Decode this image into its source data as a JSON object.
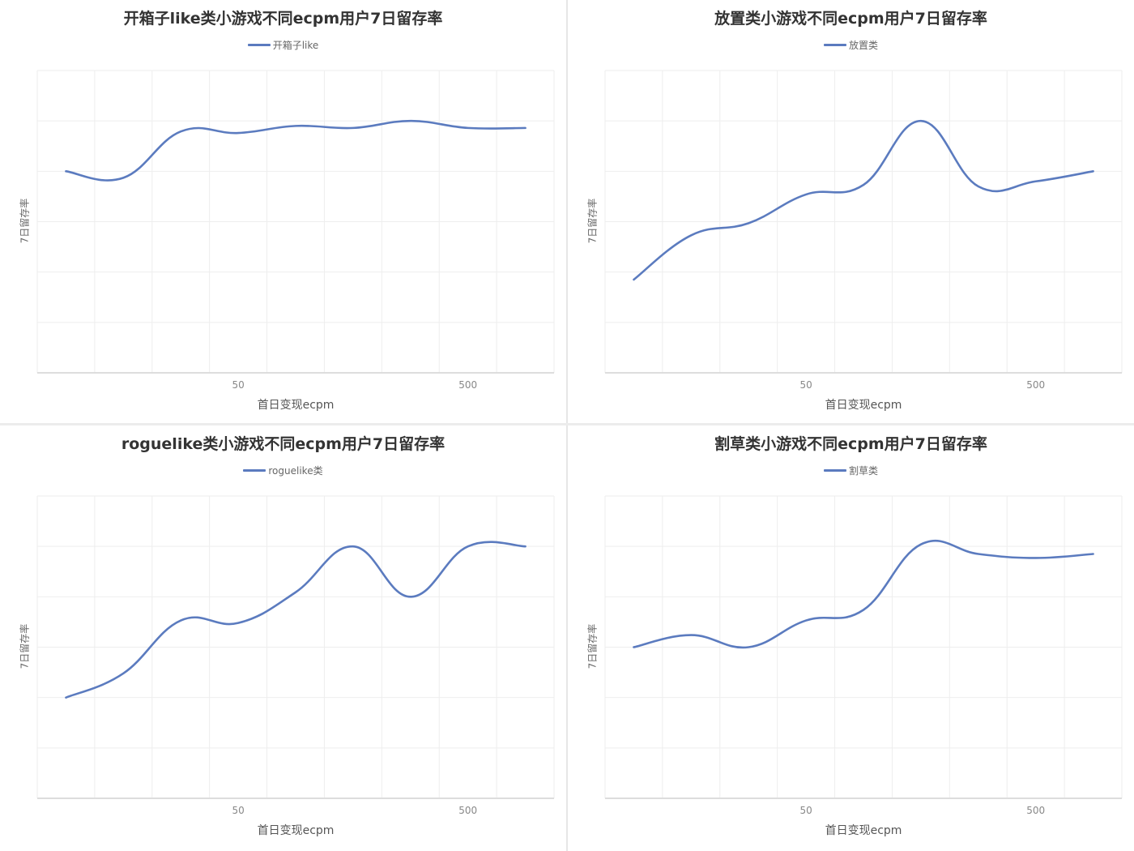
{
  "colors": {
    "line": "#5b7bbf",
    "grid": "#eeeeee",
    "axis": "#dddddd"
  },
  "panels": [
    {
      "title": "开箱子like类小游戏不同ecpm用户7日留存率",
      "legend": "开箱子like",
      "ylabel": "7日留存率",
      "xlabel": "首日变现ecpm",
      "xticks": [
        {
          "label": "50",
          "index": 3
        },
        {
          "label": "500",
          "index": 7
        }
      ]
    },
    {
      "title": "放置类小游戏不同ecpm用户7日留存率",
      "legend": "放置类",
      "ylabel": "7日留存率",
      "xlabel": "首日变现ecpm",
      "xticks": [
        {
          "label": "50",
          "index": 3
        },
        {
          "label": "500",
          "index": 7
        }
      ]
    },
    {
      "title": "roguelike类小游戏不同ecpm用户7日留存率",
      "legend": "roguelike类",
      "ylabel": "7日留存率",
      "xlabel": "首日变现ecpm",
      "xticks": [
        {
          "label": "50",
          "index": 3
        },
        {
          "label": "500",
          "index": 7
        }
      ]
    },
    {
      "title": "割草类小游戏不同ecpm用户7日留存率",
      "legend": "割草类",
      "ylabel": "7日留存率",
      "xlabel": "首日变现ecpm",
      "xticks": [
        {
          "label": "50",
          "index": 3
        },
        {
          "label": "500",
          "index": 7
        }
      ]
    }
  ],
  "chart_data": [
    {
      "type": "line",
      "title": "开箱子like类小游戏不同ecpm用户7日留存率",
      "xlabel": "首日变现ecpm",
      "ylabel": "7日留存率",
      "x_tick_labels": [
        "50",
        "500"
      ],
      "y_tick_labels": [],
      "grid": true,
      "legend_position": "top",
      "smooth": true,
      "ylim": [
        0,
        6
      ],
      "series": [
        {
          "name": "开箱子like",
          "values": [
            4.0,
            3.87,
            4.79,
            4.76,
            4.9,
            4.86,
            5.0,
            4.86,
            4.86
          ]
        }
      ]
    },
    {
      "type": "line",
      "title": "放置类小游戏不同ecpm用户7日留存率",
      "xlabel": "首日变现ecpm",
      "ylabel": "7日留存率",
      "x_tick_labels": [
        "50",
        "500"
      ],
      "y_tick_labels": [],
      "grid": true,
      "legend_position": "top",
      "smooth": true,
      "ylim": [
        0,
        6
      ],
      "series": [
        {
          "name": "放置类",
          "values": [
            1.85,
            2.73,
            2.97,
            3.54,
            3.73,
            5.0,
            3.7,
            3.8,
            4.0
          ]
        }
      ]
    },
    {
      "type": "line",
      "title": "roguelike类小游戏不同ecpm用户7日留存率",
      "xlabel": "首日变现ecpm",
      "ylabel": "7日留存率",
      "x_tick_labels": [
        "50",
        "500"
      ],
      "y_tick_labels": [],
      "grid": true,
      "legend_position": "top",
      "smooth": true,
      "ylim": [
        0,
        6
      ],
      "series": [
        {
          "name": "roguelike类",
          "values": [
            2.0,
            2.48,
            3.53,
            3.48,
            4.09,
            5.0,
            4.0,
            5.0,
            5.0
          ]
        }
      ]
    },
    {
      "type": "line",
      "title": "割草类小游戏不同ecpm用户7日留存率",
      "xlabel": "首日变现ecpm",
      "ylabel": "7日留存率",
      "x_tick_labels": [
        "50",
        "500"
      ],
      "y_tick_labels": [],
      "grid": true,
      "legend_position": "top",
      "smooth": true,
      "ylim": [
        0,
        6
      ],
      "series": [
        {
          "name": "割草类",
          "values": [
            3.0,
            3.24,
            3.0,
            3.53,
            3.74,
            5.04,
            4.85,
            4.77,
            4.85
          ]
        }
      ]
    }
  ]
}
